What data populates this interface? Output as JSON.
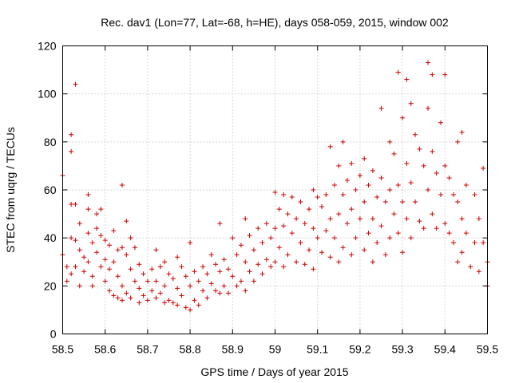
{
  "chart_data": {
    "type": "scatter",
    "title": "Rec. dav1 (Lon=77, Lat=-68, h=HE), days 058-059, 2015, window 002",
    "xlabel": "GPS time / Days of year 2015",
    "ylabel": "STEC from uqrg / TECUs",
    "xlim": [
      58.5,
      59.5
    ],
    "ylim": [
      0,
      120
    ],
    "xticks": [
      "58.5",
      "58.6",
      "58.7",
      "58.8",
      "58.9",
      "59",
      "59.1",
      "59.2",
      "59.3",
      "59.4",
      "59.5"
    ],
    "yticks": [
      "0",
      "20",
      "40",
      "60",
      "80",
      "100",
      "120"
    ],
    "grid": true,
    "marker": "plus",
    "color": "#cc0000",
    "points": [
      [
        58.5,
        66
      ],
      [
        58.5,
        33
      ],
      [
        58.51,
        28
      ],
      [
        58.51,
        22
      ],
      [
        58.52,
        83
      ],
      [
        58.52,
        76
      ],
      [
        58.52,
        54
      ],
      [
        58.52,
        40
      ],
      [
        58.52,
        25
      ],
      [
        58.53,
        104
      ],
      [
        58.53,
        54
      ],
      [
        58.53,
        39
      ],
      [
        58.53,
        28
      ],
      [
        58.54,
        46
      ],
      [
        58.54,
        35
      ],
      [
        58.54,
        20
      ],
      [
        58.55,
        32
      ],
      [
        58.55,
        26
      ],
      [
        58.56,
        58
      ],
      [
        58.56,
        52
      ],
      [
        58.56,
        42
      ],
      [
        58.56,
        30
      ],
      [
        58.57,
        38
      ],
      [
        58.57,
        24
      ],
      [
        58.57,
        20
      ],
      [
        58.58,
        50
      ],
      [
        58.58,
        44
      ],
      [
        58.58,
        34
      ],
      [
        58.59,
        52
      ],
      [
        58.59,
        41
      ],
      [
        58.59,
        28
      ],
      [
        58.6,
        39
      ],
      [
        58.6,
        31
      ],
      [
        58.6,
        22
      ],
      [
        58.61,
        37
      ],
      [
        58.61,
        27
      ],
      [
        58.61,
        18
      ],
      [
        58.62,
        43
      ],
      [
        58.62,
        30
      ],
      [
        58.62,
        16
      ],
      [
        58.63,
        35
      ],
      [
        58.63,
        24
      ],
      [
        58.63,
        15
      ],
      [
        58.64,
        62
      ],
      [
        58.64,
        36
      ],
      [
        58.64,
        20
      ],
      [
        58.64,
        14
      ],
      [
        58.65,
        47
      ],
      [
        58.65,
        33
      ],
      [
        58.65,
        17
      ],
      [
        58.66,
        40
      ],
      [
        58.66,
        27
      ],
      [
        58.66,
        15
      ],
      [
        58.67,
        36
      ],
      [
        58.67,
        22
      ],
      [
        58.68,
        29
      ],
      [
        58.68,
        19
      ],
      [
        58.68,
        13
      ],
      [
        58.69,
        25
      ],
      [
        58.69,
        16
      ],
      [
        58.7,
        22
      ],
      [
        58.7,
        14
      ],
      [
        58.71,
        27
      ],
      [
        58.71,
        18
      ],
      [
        58.72,
        35
      ],
      [
        58.72,
        22
      ],
      [
        58.72,
        15
      ],
      [
        58.73,
        28
      ],
      [
        58.73,
        17
      ],
      [
        58.74,
        30
      ],
      [
        58.74,
        20
      ],
      [
        58.74,
        13
      ],
      [
        58.75,
        25
      ],
      [
        58.75,
        14
      ],
      [
        58.76,
        23
      ],
      [
        58.76,
        13
      ],
      [
        58.77,
        32
      ],
      [
        58.77,
        19
      ],
      [
        58.77,
        12
      ],
      [
        58.78,
        28
      ],
      [
        58.78,
        16
      ],
      [
        58.79,
        24
      ],
      [
        58.79,
        11
      ],
      [
        58.8,
        38
      ],
      [
        58.8,
        20
      ],
      [
        58.8,
        10
      ],
      [
        58.81,
        26
      ],
      [
        58.81,
        14
      ],
      [
        58.82,
        22
      ],
      [
        58.82,
        12
      ],
      [
        58.83,
        28
      ],
      [
        58.83,
        18
      ],
      [
        58.84,
        25
      ],
      [
        58.84,
        15
      ],
      [
        58.85,
        33
      ],
      [
        58.85,
        21
      ],
      [
        58.86,
        29
      ],
      [
        58.86,
        18
      ],
      [
        58.87,
        46
      ],
      [
        58.87,
        26
      ],
      [
        58.87,
        17
      ],
      [
        58.88,
        31
      ],
      [
        58.88,
        20
      ],
      [
        58.89,
        27
      ],
      [
        58.89,
        17
      ],
      [
        58.9,
        40
      ],
      [
        58.9,
        24
      ],
      [
        58.91,
        33
      ],
      [
        58.91,
        20
      ],
      [
        58.92,
        37
      ],
      [
        58.92,
        22
      ],
      [
        58.93,
        48
      ],
      [
        58.93,
        30
      ],
      [
        58.93,
        18
      ],
      [
        58.94,
        41
      ],
      [
        58.94,
        26
      ],
      [
        58.95,
        35
      ],
      [
        58.95,
        22
      ],
      [
        58.96,
        44
      ],
      [
        58.96,
        29
      ],
      [
        58.97,
        38
      ],
      [
        58.97,
        25
      ],
      [
        58.98,
        46
      ],
      [
        58.98,
        31
      ],
      [
        58.99,
        40
      ],
      [
        58.99,
        28
      ],
      [
        59.0,
        59
      ],
      [
        59.0,
        44
      ],
      [
        59.0,
        30
      ],
      [
        59.01,
        52
      ],
      [
        59.01,
        36
      ],
      [
        59.02,
        58
      ],
      [
        59.02,
        45
      ],
      [
        59.02,
        28
      ],
      [
        59.03,
        50
      ],
      [
        59.03,
        33
      ],
      [
        59.04,
        57
      ],
      [
        59.04,
        42
      ],
      [
        59.05,
        48
      ],
      [
        59.05,
        30
      ],
      [
        59.06,
        55
      ],
      [
        59.06,
        38
      ],
      [
        59.07,
        46
      ],
      [
        59.07,
        29
      ],
      [
        59.08,
        52
      ],
      [
        59.08,
        35
      ],
      [
        59.09,
        60
      ],
      [
        59.09,
        44
      ],
      [
        59.09,
        27
      ],
      [
        59.1,
        57
      ],
      [
        59.1,
        40
      ],
      [
        59.11,
        53
      ],
      [
        59.11,
        34
      ],
      [
        59.12,
        58
      ],
      [
        59.12,
        43
      ],
      [
        59.13,
        78
      ],
      [
        59.13,
        48
      ],
      [
        59.13,
        32
      ],
      [
        59.14,
        62
      ],
      [
        59.14,
        40
      ],
      [
        59.15,
        70
      ],
      [
        59.15,
        50
      ],
      [
        59.15,
        30
      ],
      [
        59.16,
        80
      ],
      [
        59.16,
        58
      ],
      [
        59.16,
        36
      ],
      [
        59.17,
        64
      ],
      [
        59.17,
        46
      ],
      [
        59.18,
        71
      ],
      [
        59.18,
        52
      ],
      [
        59.18,
        33
      ],
      [
        59.19,
        60
      ],
      [
        59.19,
        40
      ],
      [
        59.2,
        66
      ],
      [
        59.2,
        48
      ],
      [
        59.21,
        73
      ],
      [
        59.21,
        55
      ],
      [
        59.21,
        35
      ],
      [
        59.22,
        62
      ],
      [
        59.22,
        42
      ],
      [
        59.23,
        68
      ],
      [
        59.23,
        48
      ],
      [
        59.23,
        30
      ],
      [
        59.24,
        57
      ],
      [
        59.24,
        38
      ],
      [
        59.25,
        94
      ],
      [
        59.25,
        65
      ],
      [
        59.25,
        45
      ],
      [
        59.26,
        55
      ],
      [
        59.26,
        33
      ],
      [
        59.27,
        80
      ],
      [
        59.27,
        60
      ],
      [
        59.27,
        40
      ],
      [
        59.28,
        75
      ],
      [
        59.28,
        50
      ],
      [
        59.29,
        109
      ],
      [
        59.29,
        62
      ],
      [
        59.29,
        42
      ],
      [
        59.3,
        90
      ],
      [
        59.3,
        55
      ],
      [
        59.3,
        34
      ],
      [
        59.31,
        106
      ],
      [
        59.31,
        71
      ],
      [
        59.31,
        48
      ],
      [
        59.32,
        96
      ],
      [
        59.32,
        63
      ],
      [
        59.32,
        40
      ],
      [
        59.33,
        83
      ],
      [
        59.33,
        55
      ],
      [
        59.34,
        77
      ],
      [
        59.34,
        47
      ],
      [
        59.35,
        70
      ],
      [
        59.35,
        44
      ],
      [
        59.36,
        113
      ],
      [
        59.36,
        94
      ],
      [
        59.36,
        60
      ],
      [
        59.37,
        108
      ],
      [
        59.37,
        76
      ],
      [
        59.37,
        50
      ],
      [
        59.38,
        67
      ],
      [
        59.38,
        44
      ],
      [
        59.39,
        88
      ],
      [
        59.39,
        58
      ],
      [
        59.4,
        108
      ],
      [
        59.4,
        70
      ],
      [
        59.4,
        46
      ],
      [
        59.41,
        65
      ],
      [
        59.41,
        42
      ],
      [
        59.42,
        58
      ],
      [
        59.42,
        38
      ],
      [
        59.43,
        80
      ],
      [
        59.43,
        55
      ],
      [
        59.43,
        30
      ],
      [
        59.44,
        84
      ],
      [
        59.44,
        48
      ],
      [
        59.44,
        34
      ],
      [
        59.45,
        62
      ],
      [
        59.45,
        42
      ],
      [
        59.46,
        28
      ],
      [
        59.47,
        58
      ],
      [
        59.47,
        38
      ],
      [
        59.48,
        48
      ],
      [
        59.48,
        26
      ],
      [
        59.49,
        69
      ],
      [
        59.49,
        38
      ],
      [
        59.5,
        30
      ],
      [
        59.5,
        20
      ]
    ]
  }
}
